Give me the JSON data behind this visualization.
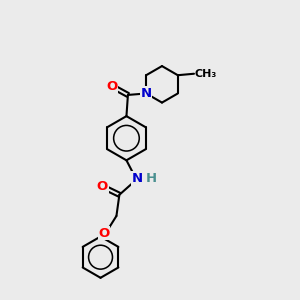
{
  "bg_color": "#ebebeb",
  "bond_color": "#000000",
  "bond_width": 1.5,
  "atom_colors": {
    "O": "#ff0000",
    "N": "#0000cc",
    "H": "#4a9090",
    "C": "#000000"
  },
  "font_size_atom": 9.5,
  "fig_width": 3.0,
  "fig_height": 3.0,
  "dpi": 100
}
